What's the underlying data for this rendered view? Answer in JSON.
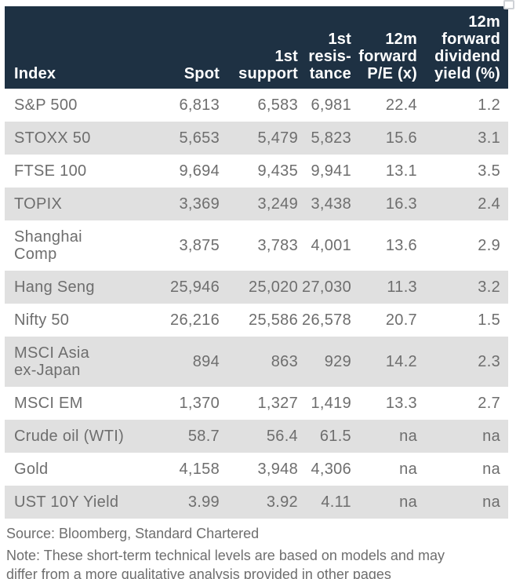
{
  "colors": {
    "header_bg": "#1e3143",
    "header_text": "#ffffff",
    "row_alt_bg": "#e0e0e0",
    "body_text": "#6e6e6e"
  },
  "icons": {
    "corner_artifact": "clipped-square-glyph"
  },
  "table": {
    "columns": [
      {
        "label": "Index",
        "align": "left"
      },
      {
        "label": "Spot",
        "align": "right"
      },
      {
        "label": "1st\nsupport",
        "align": "right"
      },
      {
        "label": "1st\nresis-\ntance",
        "align": "right"
      },
      {
        "label": "12m\nforward\nP/E (x)",
        "align": "right"
      },
      {
        "label": "12m\nforward\ndividend\nyield (%)",
        "align": "right"
      }
    ],
    "rows": [
      [
        "S&P 500",
        "6,813",
        "6,583",
        "6,981",
        "22.4",
        "1.2"
      ],
      [
        "STOXX 50",
        "5,653",
        "5,479",
        "5,823",
        "15.6",
        "3.1"
      ],
      [
        "FTSE 100",
        "9,694",
        "9,435",
        "9,941",
        "13.1",
        "3.5"
      ],
      [
        "TOPIX",
        "3,369",
        "3,249",
        "3,438",
        "16.3",
        "2.4"
      ],
      [
        "Shanghai Comp",
        "3,875",
        "3,783",
        "4,001",
        "13.6",
        "2.9"
      ],
      [
        "Hang Seng",
        "25,946",
        "25,020",
        "27,030",
        "11.3",
        "3.2"
      ],
      [
        "Nifty 50",
        "26,216",
        "25,586",
        "26,578",
        "20.7",
        "1.5"
      ],
      [
        "MSCI Asia\nex-Japan",
        "894",
        "863",
        "929",
        "14.2",
        "2.3"
      ],
      [
        "MSCI EM",
        "1,370",
        "1,327",
        "1,419",
        "13.3",
        "2.7"
      ],
      [
        "Crude oil (WTI)",
        "58.7",
        "56.4",
        "61.5",
        "na",
        "na"
      ],
      [
        "Gold",
        "4,158",
        "3,948",
        "4,306",
        "na",
        "na"
      ],
      [
        "UST 10Y Yield",
        "3.99",
        "3.92",
        "4.11",
        "na",
        "na"
      ]
    ]
  },
  "footer": {
    "source": "Source: Bloomberg, Standard Chartered",
    "note": "Note: These short-term technical levels are based on models and may\ndiffer from a more qualitative analysis provided in other pages"
  }
}
